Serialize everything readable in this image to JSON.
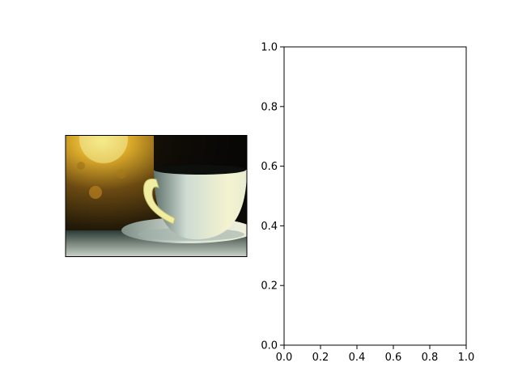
{
  "chart_data": [
    {
      "type": "image",
      "image": {
        "subject": "photo of a white coffee cup on a saucer with warm bokeh background",
        "colors": {
          "cup": "#dfe8dc",
          "saucer": "#c9d3c4",
          "background_dark": "#0b0a06",
          "bokeh_warm": "#d9a829",
          "bokeh_amber": "#8a5a12",
          "table": "#c6cfc4",
          "highlight": "#f4f3d0"
        }
      },
      "axes_visible": false
    },
    {
      "type": "scatter",
      "series": [],
      "xlim": [
        0,
        1
      ],
      "ylim": [
        0,
        1
      ],
      "x_ticks": [
        "0.0",
        "0.2",
        "0.4",
        "0.6",
        "0.8",
        "1.0"
      ],
      "y_ticks": [
        "0.0",
        "0.2",
        "0.4",
        "0.6",
        "0.8",
        "1.0"
      ],
      "grid": false,
      "title": "",
      "xlabel": "",
      "ylabel": ""
    }
  ]
}
